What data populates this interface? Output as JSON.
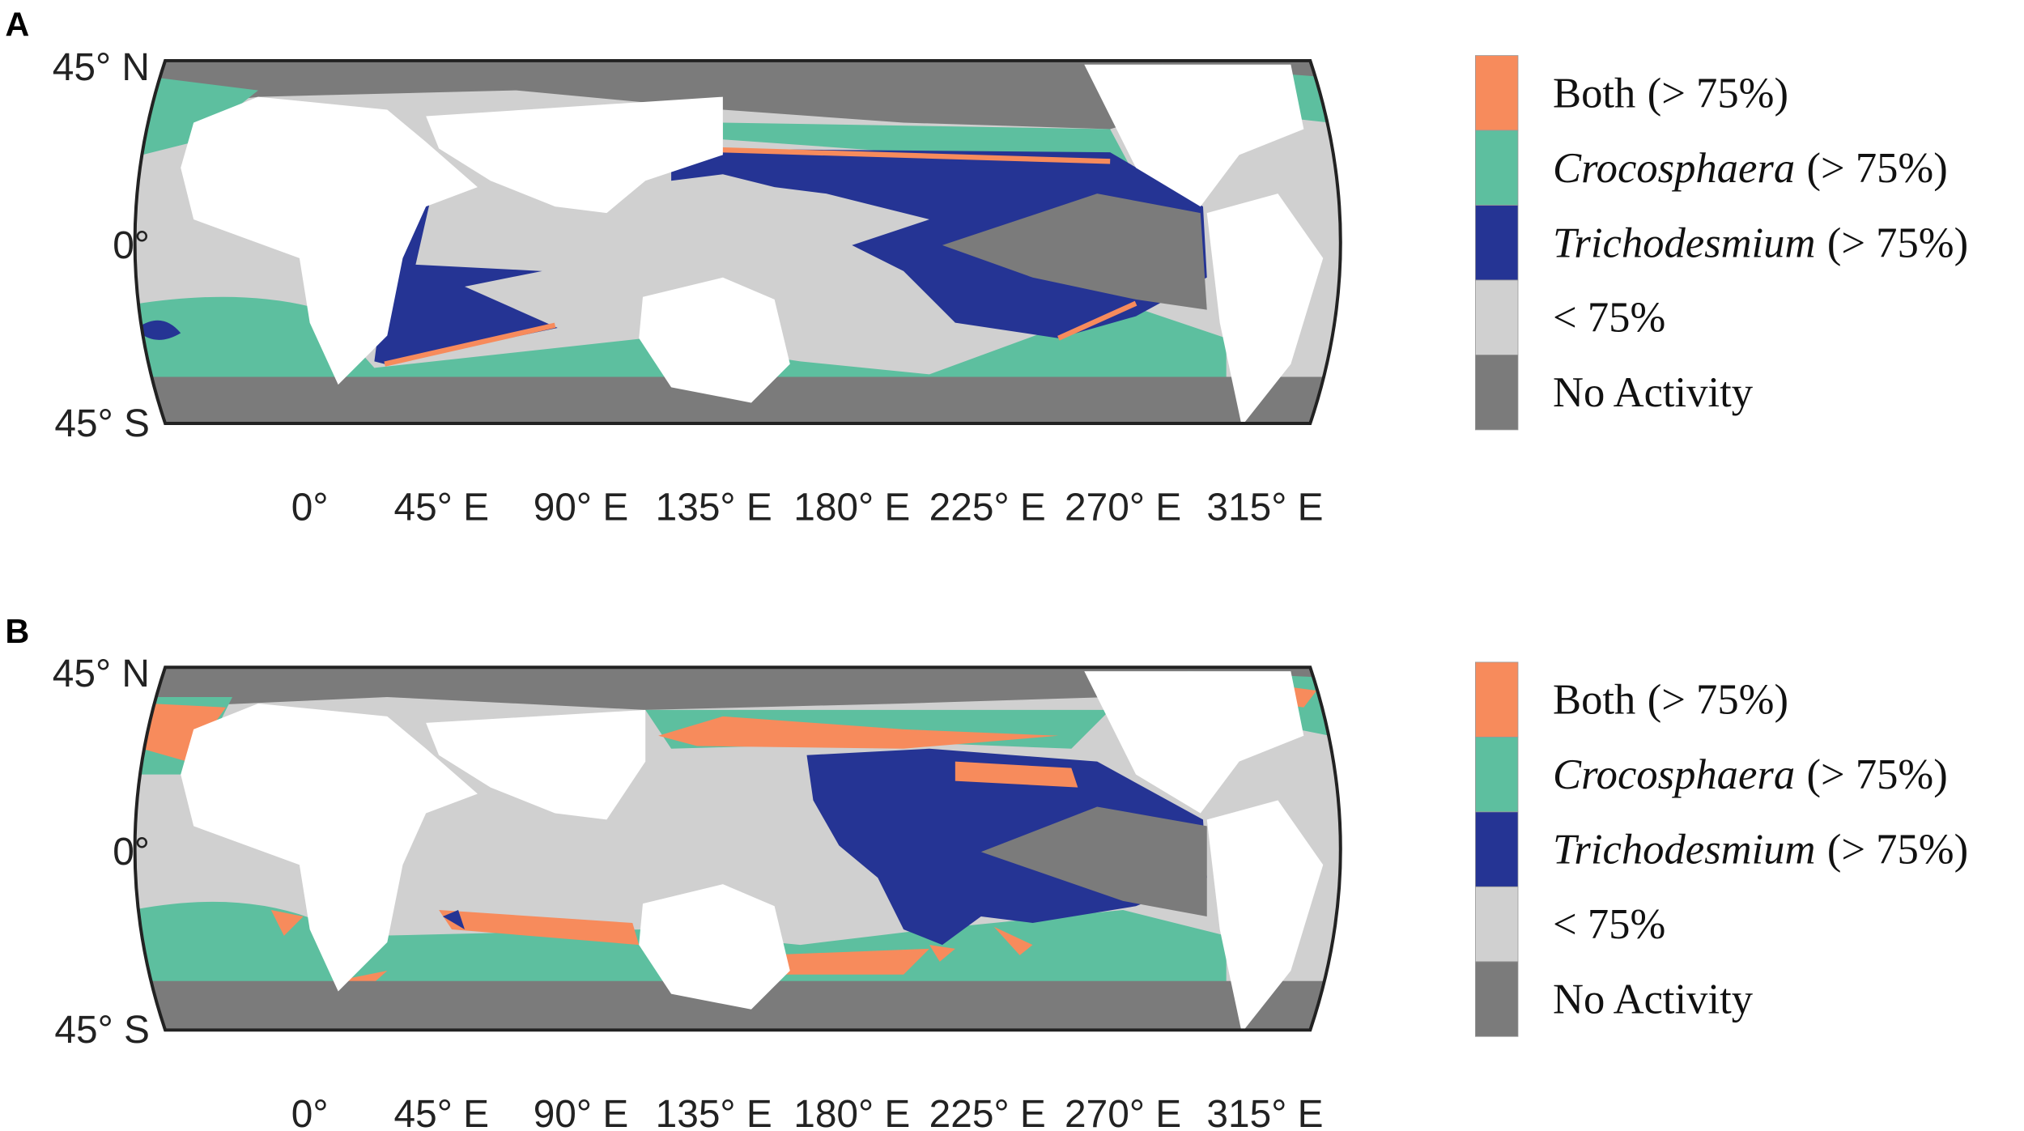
{
  "panels": [
    {
      "label": "A",
      "lat_labels": [
        "45° N",
        "0°",
        "45° S"
      ],
      "lon_labels": [
        "0°",
        "45° E",
        "90° E",
        "135° E",
        "180° E",
        "225° E",
        "270° E",
        "315° E"
      ],
      "legend": [
        {
          "name": "Both",
          "qualifier": "(> 75%)",
          "italic": false,
          "color": "#f78b5c"
        },
        {
          "name": "Crocosphaera",
          "qualifier": "(> 75%)",
          "italic": true,
          "color": "#5dbf9f"
        },
        {
          "name": "Trichodesmium",
          "qualifier": "(> 75%)",
          "italic": true,
          "color": "#253494"
        },
        {
          "name": "< 75%",
          "italic": false,
          "color": "#d0d0d0"
        },
        {
          "name": "No Activity",
          "italic": false,
          "color": "#7b7b7b"
        }
      ]
    },
    {
      "label": "B",
      "lat_labels": [
        "45° N",
        "0°",
        "45° S"
      ],
      "lon_labels": [
        "0°",
        "45° E",
        "90° E",
        "135° E",
        "180° E",
        "225° E",
        "270° E",
        "315° E"
      ],
      "legend": [
        {
          "name": "Both",
          "qualifier": "(> 75%)",
          "italic": false,
          "color": "#f78b5c"
        },
        {
          "name": "Crocosphaera",
          "qualifier": "(> 75%)",
          "italic": true,
          "color": "#5dbf9f"
        },
        {
          "name": "Trichodesmium",
          "qualifier": "(> 75%)",
          "italic": true,
          "color": "#253494"
        },
        {
          "name": "< 75%",
          "italic": false,
          "color": "#d0d0d0"
        },
        {
          "name": "No Activity",
          "italic": false,
          "color": "#7b7b7b"
        }
      ]
    }
  ]
}
